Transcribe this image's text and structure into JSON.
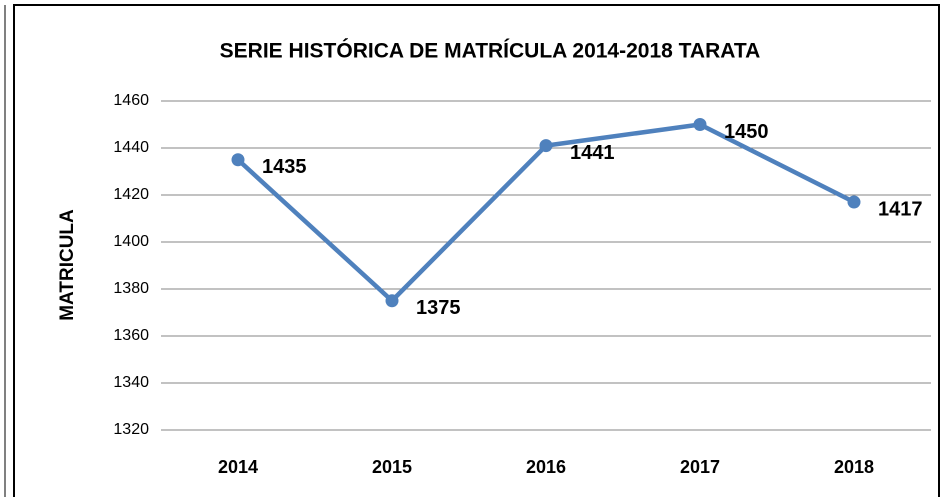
{
  "chart_data": {
    "type": "line",
    "title": "SERIE HISTÓRICA DE MATRÍCULA 2014-2018  TARATA",
    "y_label": "MATRICULA",
    "categories": [
      "2014",
      "2015",
      "2016",
      "2017",
      "2018"
    ],
    "series": [
      {
        "name": "MATRICULA",
        "color": "#4f81bd",
        "values": [
          1435,
          1375,
          1441,
          1450,
          1417
        ]
      }
    ],
    "ylim": [
      1320,
      1460
    ],
    "yticks": [
      1320,
      1340,
      1360,
      1380,
      1400,
      1420,
      1440,
      1460
    ],
    "grid": true
  }
}
